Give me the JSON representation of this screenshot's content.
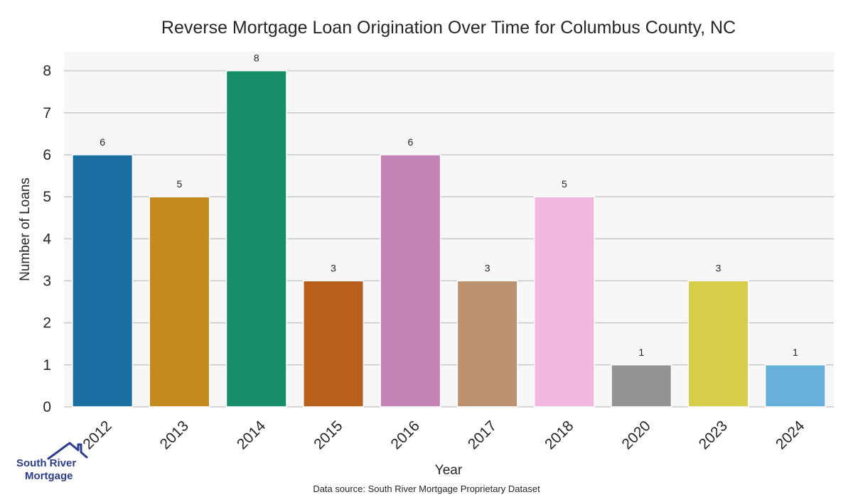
{
  "chart_data": {
    "type": "bar",
    "title": "Reverse Mortgage Loan Origination Over Time for Columbus County, NC",
    "xlabel": "Year",
    "ylabel": "Number of Loans",
    "categories": [
      "2012",
      "2013",
      "2014",
      "2015",
      "2016",
      "2017",
      "2018",
      "2020",
      "2023",
      "2024"
    ],
    "values": [
      6,
      5,
      8,
      3,
      6,
      3,
      5,
      1,
      3,
      1
    ],
    "colors": [
      "#1a6fa0",
      "#c58a1f",
      "#178c69",
      "#b85f1c",
      "#c383b5",
      "#bb9370",
      "#f1b7df",
      "#939393",
      "#d6cd4a",
      "#67b0da"
    ],
    "ylim": [
      0,
      8.45
    ],
    "yticks": [
      0,
      1,
      2,
      3,
      4,
      5,
      6,
      7,
      8
    ],
    "grid": true,
    "data_labels": true,
    "plot_background": "#f7f7f7",
    "grid_color": "#cccccc"
  },
  "source_note": "Data source: South River Mortgage Proprietary Dataset",
  "logo": {
    "line1": "South River",
    "line2": "Mortgage",
    "icon": "house-outline-icon",
    "color": "#2b3d8c"
  }
}
